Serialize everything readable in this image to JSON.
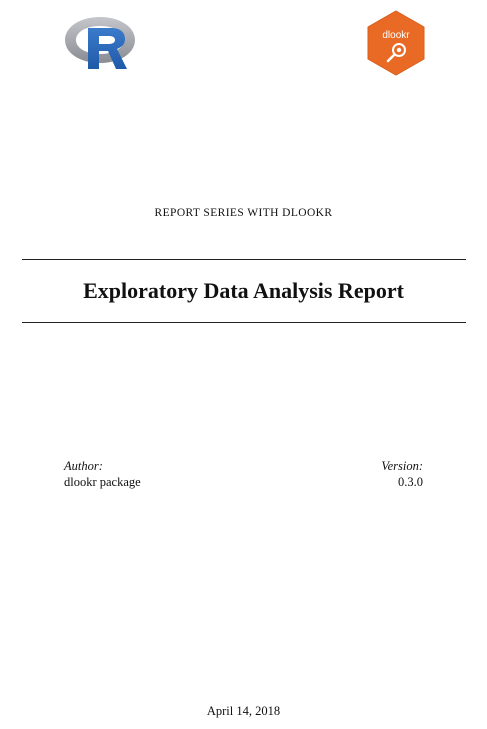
{
  "logos": {
    "left_icon": "r-logo",
    "right_icon": "dlookr-hex-logo",
    "right_logo_text": "dlookr",
    "colors": {
      "r_ring": "#9a9ca3",
      "r_letter": "#2a64b3",
      "hex_fill": "#e86a25"
    }
  },
  "series_label": "REPORT SERIES WITH DLOOKR",
  "title": "Exploratory Data Analysis Report",
  "author": {
    "label": "Author:",
    "value": "dlookr package"
  },
  "version": {
    "label": "Version:",
    "value": "0.3.0"
  },
  "date": "April 14, 2018"
}
